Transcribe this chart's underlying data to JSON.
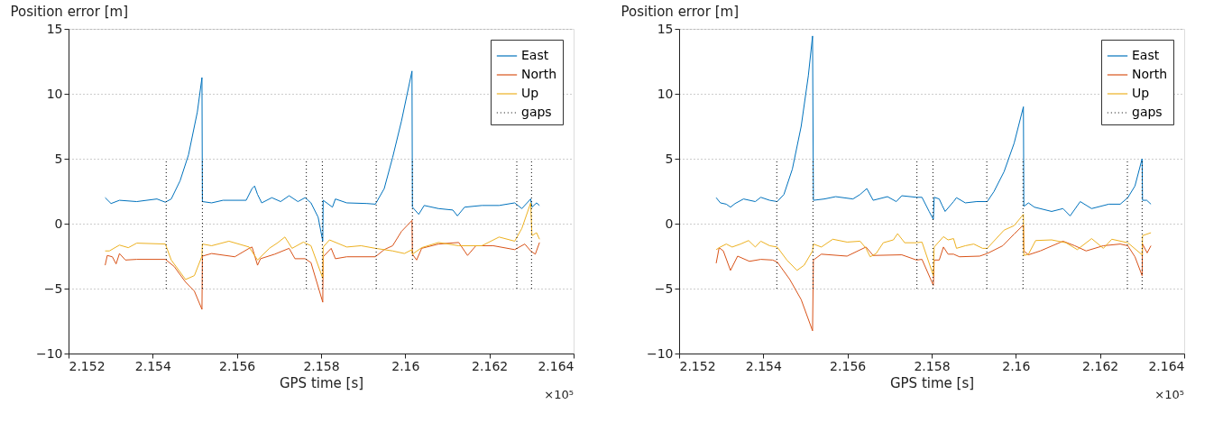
{
  "chart_data": [
    {
      "type": "line",
      "title": "Position error [m]",
      "xlabel": "GPS time [s]",
      "annotations": [
        "×10⁵"
      ],
      "legend": "top right",
      "grid": "y",
      "line_style": "solid",
      "marker": "none",
      "xlim": [
        2.152,
        2.164
      ],
      "xticks": [
        2.152,
        2.154,
        2.156,
        2.158,
        2.16,
        2.162,
        2.164
      ],
      "ylim": [
        -10,
        15
      ],
      "yticks": [
        -10,
        -5,
        0,
        5,
        10,
        15
      ],
      "series": [
        {
          "name": "East",
          "color": "#0072bd",
          "x": [
            2.15287,
            2.15301,
            2.15321,
            2.15362,
            2.1541,
            2.1543,
            2.15444,
            2.15465,
            2.15485,
            2.15506,
            2.15517,
            2.15518,
            2.1554,
            2.15567,
            2.15622,
            2.15636,
            2.15642,
            2.15649,
            2.15659,
            2.15683,
            2.15704,
            2.15724,
            2.15745,
            2.15762,
            2.15776,
            2.15793,
            2.15804,
            2.15805,
            2.15827,
            2.15834,
            2.15861,
            2.15909,
            2.15929,
            2.1595,
            2.1597,
            2.15991,
            2.16016,
            2.16017,
            2.16032,
            2.16045,
            2.16079,
            2.16113,
            2.16124,
            2.16141,
            2.16182,
            2.16223,
            2.1626,
            2.16277,
            2.16298,
            2.16301,
            2.16312,
            2.16319
          ],
          "values": [
            2.0,
            1.55,
            1.8,
            1.7,
            1.9,
            1.65,
            1.9,
            3.3,
            5.3,
            8.6,
            11.25,
            1.7,
            1.6,
            1.8,
            1.8,
            2.7,
            2.9,
            2.25,
            1.6,
            2.0,
            1.7,
            2.15,
            1.7,
            2.0,
            1.6,
            0.5,
            -1.35,
            1.8,
            1.27,
            1.9,
            1.6,
            1.55,
            1.5,
            2.7,
            5.1,
            7.9,
            11.75,
            1.27,
            0.72,
            1.4,
            1.16,
            1.05,
            0.6,
            1.27,
            1.4,
            1.4,
            1.6,
            1.16,
            1.9,
            1.27,
            1.6,
            1.4
          ]
        },
        {
          "name": "North",
          "color": "#d95319",
          "x": [
            2.15287,
            2.15292,
            2.15304,
            2.15313,
            2.15321,
            2.15335,
            2.15362,
            2.1543,
            2.15451,
            2.15478,
            2.15499,
            2.15517,
            2.15518,
            2.1554,
            2.15595,
            2.15629,
            2.15636,
            2.15649,
            2.15656,
            2.1569,
            2.15724,
            2.15738,
            2.15762,
            2.15776,
            2.15804,
            2.15805,
            2.15824,
            2.15834,
            2.15861,
            2.15929,
            2.1595,
            2.1597,
            2.15991,
            2.16016,
            2.16017,
            2.16027,
            2.16039,
            2.16079,
            2.16127,
            2.16148,
            2.16168,
            2.16209,
            2.1626,
            2.16284,
            2.16298,
            2.16309,
            2.16319
          ],
          "values": [
            -3.2,
            -2.45,
            -2.55,
            -3.1,
            -2.3,
            -2.8,
            -2.75,
            -2.75,
            -3.3,
            -4.5,
            -5.2,
            -6.6,
            -2.5,
            -2.3,
            -2.55,
            -1.9,
            -1.8,
            -3.2,
            -2.7,
            -2.35,
            -1.9,
            -2.7,
            -2.7,
            -3.0,
            -6.05,
            -2.55,
            -1.9,
            -2.7,
            -2.55,
            -2.55,
            -2.0,
            -1.7,
            -0.6,
            0.25,
            -2.35,
            -2.8,
            -1.9,
            -1.57,
            -1.45,
            -2.45,
            -1.7,
            -1.7,
            -2.0,
            -1.57,
            -2.1,
            -2.35,
            -1.45
          ]
        },
        {
          "name": "Up",
          "color": "#edb120",
          "x": [
            2.15287,
            2.15297,
            2.15321,
            2.15342,
            2.15362,
            2.1543,
            2.15444,
            2.15478,
            2.15499,
            2.15517,
            2.15518,
            2.1554,
            2.15581,
            2.15629,
            2.15649,
            2.15677,
            2.15697,
            2.15714,
            2.15731,
            2.15758,
            2.15776,
            2.15804,
            2.15805,
            2.1582,
            2.15861,
            2.15895,
            2.15929,
            2.1597,
            2.15998,
            2.16016,
            2.16017,
            2.16039,
            2.16079,
            2.16127,
            2.16182,
            2.16223,
            2.1626,
            2.16277,
            2.16298,
            2.16301,
            2.16312,
            2.16319
          ],
          "values": [
            -2.1,
            -2.1,
            -1.65,
            -1.85,
            -1.5,
            -1.57,
            -2.8,
            -4.3,
            -4.0,
            -2.5,
            -1.57,
            -1.7,
            -1.35,
            -1.8,
            -2.8,
            -1.9,
            -1.47,
            -1.03,
            -1.9,
            -1.42,
            -1.7,
            -4.2,
            -1.8,
            -1.25,
            -1.8,
            -1.7,
            -1.9,
            -2.1,
            -2.3,
            -2.0,
            -2.35,
            -1.85,
            -1.45,
            -1.7,
            -1.7,
            -1.03,
            -1.35,
            -0.37,
            1.6,
            -0.92,
            -0.7,
            -1.2
          ]
        },
        {
          "name": "gaps",
          "color": "#000000",
          "line_style": "dotted",
          "x": [
            2.15432,
            2.15432,
            null,
            2.15518,
            2.15518,
            null,
            2.15765,
            2.15765,
            null,
            2.15803,
            2.15803,
            null,
            2.15931,
            2.15931,
            null,
            2.16017,
            2.16017,
            null,
            2.16265,
            2.16265,
            null,
            2.163,
            2.163
          ],
          "values": [
            -5,
            5,
            null,
            -5,
            5,
            null,
            -5,
            5,
            null,
            -5,
            5,
            null,
            -5,
            5,
            null,
            -5,
            5,
            null,
            -5,
            5,
            null,
            -5,
            5
          ]
        }
      ]
    },
    {
      "type": "line",
      "title": "Position error [m]",
      "xlabel": "GPS time [s]",
      "annotations": [
        "×10⁵"
      ],
      "legend": "top right",
      "grid": "y",
      "line_style": "solid",
      "marker": "none",
      "xlim": [
        2.152,
        2.164
      ],
      "xticks": [
        2.152,
        2.154,
        2.156,
        2.158,
        2.16,
        2.162,
        2.164
      ],
      "ylim": [
        -10,
        15
      ],
      "yticks": [
        -10,
        -5,
        0,
        5,
        10,
        15
      ],
      "series": [
        {
          "name": "East",
          "color": "#0072bd",
          "x": [
            2.15288,
            2.15298,
            2.15312,
            2.15322,
            2.15333,
            2.15353,
            2.15381,
            2.15394,
            2.15415,
            2.15433,
            2.15449,
            2.15469,
            2.1549,
            2.15507,
            2.15517,
            2.15519,
            2.15545,
            2.15572,
            2.15613,
            2.1563,
            2.15646,
            2.15661,
            2.15695,
            2.15716,
            2.15729,
            2.15764,
            2.15777,
            2.15794,
            2.15804,
            2.15806,
            2.15818,
            2.15825,
            2.15832,
            2.15852,
            2.15859,
            2.1588,
            2.15907,
            2.15932,
            2.15948,
            2.15972,
            2.15996,
            2.16018,
            2.16019,
            2.1603,
            2.16044,
            2.16085,
            2.16112,
            2.16129,
            2.16153,
            2.1618,
            2.16221,
            2.16248,
            2.16266,
            2.16283,
            2.163,
            2.16301,
            2.16311,
            2.16321
          ],
          "values": [
            2.0,
            1.6,
            1.5,
            1.27,
            1.55,
            1.9,
            1.7,
            2.03,
            1.8,
            1.7,
            2.25,
            4.2,
            7.5,
            11.4,
            14.45,
            1.8,
            1.9,
            2.08,
            1.9,
            2.25,
            2.7,
            1.8,
            2.08,
            1.7,
            2.15,
            2.03,
            2.03,
            0.94,
            0.33,
            2.03,
            1.9,
            1.4,
            0.94,
            1.7,
            2.0,
            1.6,
            1.7,
            1.7,
            2.47,
            4.0,
            6.2,
            9.0,
            1.33,
            1.6,
            1.27,
            0.94,
            1.16,
            0.6,
            1.7,
            1.16,
            1.5,
            1.5,
            2.0,
            2.9,
            5.0,
            1.8,
            1.8,
            1.5
          ]
        },
        {
          "name": "North",
          "color": "#d95319",
          "x": [
            2.15288,
            2.15295,
            2.15305,
            2.15322,
            2.15339,
            2.15367,
            2.15394,
            2.15422,
            2.15433,
            2.15463,
            2.1549,
            2.15517,
            2.15519,
            2.15538,
            2.15599,
            2.15644,
            2.15661,
            2.15729,
            2.15764,
            2.15777,
            2.15804,
            2.15806,
            2.15818,
            2.15828,
            2.15839,
            2.15852,
            2.15866,
            2.15914,
            2.15932,
            2.15969,
            2.15996,
            2.16018,
            2.16019,
            2.1603,
            2.16058,
            2.16112,
            2.1614,
            2.16167,
            2.16208,
            2.16248,
            2.16266,
            2.16283,
            2.163,
            2.16301,
            2.16312,
            2.16321
          ],
          "values": [
            -3.05,
            -1.85,
            -2.1,
            -3.6,
            -2.5,
            -2.9,
            -2.75,
            -2.8,
            -2.95,
            -4.3,
            -5.85,
            -8.25,
            -2.8,
            -2.35,
            -2.5,
            -1.8,
            -2.45,
            -2.4,
            -2.8,
            -2.75,
            -4.75,
            -2.8,
            -2.8,
            -1.8,
            -2.35,
            -2.35,
            -2.55,
            -2.5,
            -2.3,
            -1.7,
            -0.8,
            -0.1,
            -2.1,
            -2.4,
            -2.1,
            -1.35,
            -1.7,
            -2.1,
            -1.7,
            -1.57,
            -1.7,
            -2.55,
            -4.0,
            -1.57,
            -2.25,
            -1.7
          ]
        },
        {
          "name": "Up",
          "color": "#edb120",
          "x": [
            2.15288,
            2.15298,
            2.15312,
            2.15326,
            2.15346,
            2.15365,
            2.15381,
            2.15394,
            2.15415,
            2.15433,
            2.15456,
            2.1548,
            2.15497,
            2.15517,
            2.15519,
            2.15538,
            2.15565,
            2.15599,
            2.1563,
            2.15644,
            2.15654,
            2.15668,
            2.15685,
            2.15709,
            2.15719,
            2.15736,
            2.15764,
            2.15777,
            2.15804,
            2.15806,
            2.15828,
            2.15839,
            2.15852,
            2.15859,
            2.1588,
            2.159,
            2.15921,
            2.15932,
            2.15972,
            2.15996,
            2.16018,
            2.16019,
            2.1603,
            2.16047,
            2.16085,
            2.16119,
            2.16146,
            2.1618,
            2.16208,
            2.16228,
            2.16266,
            2.163,
            2.16301,
            2.16321
          ],
          "values": [
            -2.0,
            -1.8,
            -1.57,
            -1.8,
            -1.57,
            -1.3,
            -1.8,
            -1.35,
            -1.7,
            -1.8,
            -2.8,
            -3.6,
            -3.2,
            -2.1,
            -1.57,
            -1.8,
            -1.2,
            -1.42,
            -1.35,
            -1.9,
            -2.55,
            -2.3,
            -1.47,
            -1.25,
            -0.77,
            -1.47,
            -1.47,
            -1.42,
            -4.0,
            -1.8,
            -1.0,
            -1.25,
            -1.15,
            -1.9,
            -1.7,
            -1.57,
            -1.9,
            -1.9,
            -0.5,
            -0.15,
            0.72,
            -2.45,
            -2.35,
            -1.3,
            -1.25,
            -1.47,
            -2.0,
            -1.15,
            -1.9,
            -1.2,
            -1.47,
            -2.4,
            -0.92,
            -0.7
          ]
        },
        {
          "name": "gaps",
          "color": "#000000",
          "line_style": "dotted",
          "x": [
            2.15432,
            2.15432,
            null,
            2.15518,
            2.15518,
            null,
            2.15765,
            2.15765,
            null,
            2.15803,
            2.15803,
            null,
            2.15931,
            2.15931,
            null,
            2.16017,
            2.16017,
            null,
            2.16265,
            2.16265,
            null,
            2.163,
            2.163
          ],
          "values": [
            -5,
            5,
            null,
            -5,
            5,
            null,
            -5,
            5,
            null,
            -5,
            5,
            null,
            -5,
            5,
            null,
            -5,
            5,
            null,
            -5,
            5,
            null,
            -5,
            5
          ]
        }
      ]
    }
  ]
}
